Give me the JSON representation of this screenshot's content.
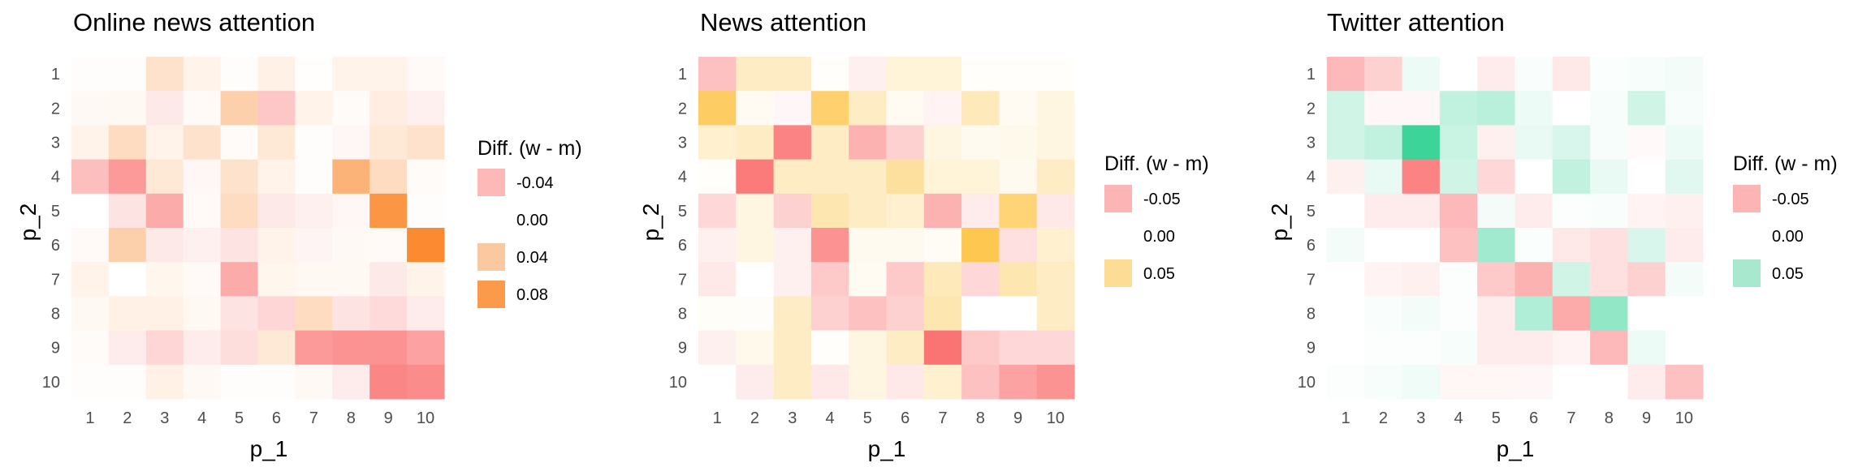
{
  "chart_data": [
    {
      "type": "heatmap",
      "title": "Online news attention",
      "xlabel": "p_1",
      "ylabel": "p_2",
      "x": [
        "1",
        "2",
        "3",
        "4",
        "5",
        "6",
        "7",
        "8",
        "9",
        "10"
      ],
      "y": [
        "1",
        "2",
        "3",
        "4",
        "5",
        "6",
        "7",
        "8",
        "9",
        "10"
      ],
      "legend_title": "Diff. (w - m)",
      "legend": [
        {
          "label": "-0.04",
          "color": "#fdb9b8"
        },
        {
          "label": "0.00",
          "color": "#ffffff"
        },
        {
          "label": "0.04",
          "color": "#fcc8a0"
        },
        {
          "label": "0.08",
          "color": "#fb9a4b"
        }
      ],
      "scale": {
        "min": -0.08,
        "max": 0.1,
        "neg_color": "#fa6a6a",
        "pos_color": "#fb8a30"
      },
      "values": [
        [
          0.002,
          0.002,
          0.025,
          0.01,
          0.002,
          0.012,
          0.001,
          0.01,
          0.01,
          0.004
        ],
        [
          0.005,
          0.006,
          -0.012,
          0.004,
          0.04,
          -0.03,
          0.01,
          0.003,
          0.015,
          -0.008
        ],
        [
          0.01,
          0.03,
          0.01,
          0.025,
          0.003,
          0.02,
          0.002,
          -0.005,
          0.02,
          0.025
        ],
        [
          -0.035,
          -0.055,
          0.02,
          -0.005,
          0.025,
          0.01,
          0.002,
          0.065,
          0.03,
          0.003
        ],
        [
          0.0,
          -0.015,
          -0.045,
          0.004,
          0.03,
          -0.012,
          -0.008,
          -0.005,
          0.09,
          0.002
        ],
        [
          0.004,
          0.04,
          -0.012,
          -0.008,
          -0.015,
          0.01,
          -0.006,
          0.005,
          0.004,
          0.1
        ],
        [
          0.01,
          0.0,
          0.008,
          0.004,
          -0.045,
          0.008,
          0.006,
          0.006,
          -0.012,
          0.01
        ],
        [
          0.006,
          0.012,
          0.012,
          0.006,
          -0.015,
          -0.022,
          0.03,
          -0.015,
          -0.02,
          -0.01
        ],
        [
          0.003,
          -0.01,
          -0.022,
          -0.01,
          -0.018,
          0.02,
          -0.055,
          -0.058,
          -0.058,
          -0.05
        ],
        [
          0.002,
          0.002,
          0.012,
          0.005,
          0.002,
          0.002,
          0.005,
          -0.01,
          -0.065,
          -0.062
        ]
      ]
    },
    {
      "type": "heatmap",
      "title": "News attention",
      "xlabel": "p_1",
      "ylabel": "p_2",
      "x": [
        "1",
        "2",
        "3",
        "4",
        "5",
        "6",
        "7",
        "8",
        "9",
        "10"
      ],
      "y": [
        "1",
        "2",
        "3",
        "4",
        "5",
        "6",
        "7",
        "8",
        "9",
        "10"
      ],
      "legend_title": "Diff. (w - m)",
      "legend": [
        {
          "label": "-0.05",
          "color": "#fdb4b4"
        },
        {
          "label": "0.00",
          "color": "#ffffff"
        },
        {
          "label": "0.05",
          "color": "#fddc95"
        }
      ],
      "scale": {
        "min": -0.1,
        "max": 0.1,
        "neg_color": "#fa6464",
        "pos_color": "#fdc13d"
      },
      "values": [
        [
          -0.04,
          0.03,
          0.03,
          0.002,
          -0.01,
          0.02,
          0.02,
          0.002,
          0.002,
          0.002
        ],
        [
          0.08,
          0.006,
          -0.005,
          0.075,
          0.03,
          0.006,
          -0.008,
          0.035,
          0.006,
          0.015
        ],
        [
          0.025,
          0.03,
          -0.08,
          0.03,
          -0.05,
          -0.03,
          0.015,
          0.008,
          0.01,
          0.015
        ],
        [
          0.002,
          -0.085,
          0.03,
          0.03,
          0.03,
          0.05,
          0.02,
          0.02,
          0.008,
          0.03
        ],
        [
          -0.025,
          0.015,
          -0.03,
          0.04,
          0.03,
          0.025,
          -0.05,
          -0.012,
          0.07,
          -0.015
        ],
        [
          -0.01,
          0.015,
          -0.01,
          -0.07,
          0.008,
          0.008,
          0.005,
          0.09,
          -0.02,
          0.025
        ],
        [
          -0.015,
          0.0,
          -0.01,
          -0.035,
          0.006,
          -0.035,
          0.035,
          -0.025,
          0.04,
          0.03
        ],
        [
          0.004,
          0.003,
          0.03,
          -0.03,
          -0.04,
          -0.03,
          0.04,
          0.0,
          0.0,
          0.03
        ],
        [
          -0.01,
          0.01,
          0.03,
          0.002,
          0.015,
          0.03,
          -0.09,
          -0.035,
          -0.025,
          -0.025
        ],
        [
          0.0,
          -0.012,
          0.03,
          -0.015,
          0.015,
          -0.015,
          0.025,
          -0.04,
          -0.06,
          -0.07
        ]
      ]
    },
    {
      "type": "heatmap",
      "title": "Twitter attention",
      "xlabel": "p_1",
      "ylabel": "p_2",
      "x": [
        "1",
        "2",
        "3",
        "4",
        "5",
        "6",
        "7",
        "8",
        "9",
        "10"
      ],
      "y": [
        "1",
        "2",
        "3",
        "4",
        "5",
        "6",
        "7",
        "8",
        "9",
        "10"
      ],
      "legend_title": "Diff. (w - m)",
      "legend": [
        {
          "label": "-0.05",
          "color": "#fdb4b4"
        },
        {
          "label": "0.00",
          "color": "#ffffff"
        },
        {
          "label": "0.05",
          "color": "#a8e8ce"
        }
      ],
      "scale": {
        "min": -0.1,
        "max": 0.125,
        "neg_color": "#fa6464",
        "pos_color": "#3dd49a"
      },
      "values": [
        [
          -0.045,
          -0.03,
          0.012,
          0.0,
          -0.012,
          0.004,
          -0.015,
          0.003,
          0.006,
          0.008
        ],
        [
          0.03,
          -0.005,
          -0.005,
          0.04,
          0.045,
          0.012,
          0.0,
          0.006,
          0.03,
          0.006
        ],
        [
          0.03,
          0.04,
          0.125,
          0.035,
          -0.01,
          0.015,
          0.025,
          0.005,
          -0.004,
          0.012
        ],
        [
          -0.01,
          0.015,
          -0.08,
          0.03,
          -0.025,
          0.0,
          0.04,
          0.015,
          0.0,
          0.02
        ],
        [
          0.0,
          -0.012,
          -0.012,
          -0.045,
          0.008,
          -0.012,
          0.002,
          0.004,
          -0.008,
          -0.01
        ],
        [
          0.008,
          0.0,
          0.0,
          -0.04,
          0.06,
          0.003,
          -0.015,
          -0.02,
          0.025,
          -0.012
        ],
        [
          0.0,
          -0.008,
          -0.01,
          0.002,
          -0.035,
          -0.05,
          0.03,
          -0.02,
          -0.03,
          0.008
        ],
        [
          0.0,
          0.004,
          0.008,
          0.002,
          -0.012,
          0.05,
          -0.055,
          0.07,
          0.0,
          0.0
        ],
        [
          0.0,
          0.002,
          0.002,
          0.006,
          -0.012,
          -0.012,
          -0.008,
          -0.045,
          0.012,
          0.0
        ],
        [
          0.002,
          0.006,
          0.01,
          -0.006,
          -0.006,
          -0.005,
          0.0,
          0.0,
          -0.012,
          -0.04
        ]
      ]
    }
  ]
}
